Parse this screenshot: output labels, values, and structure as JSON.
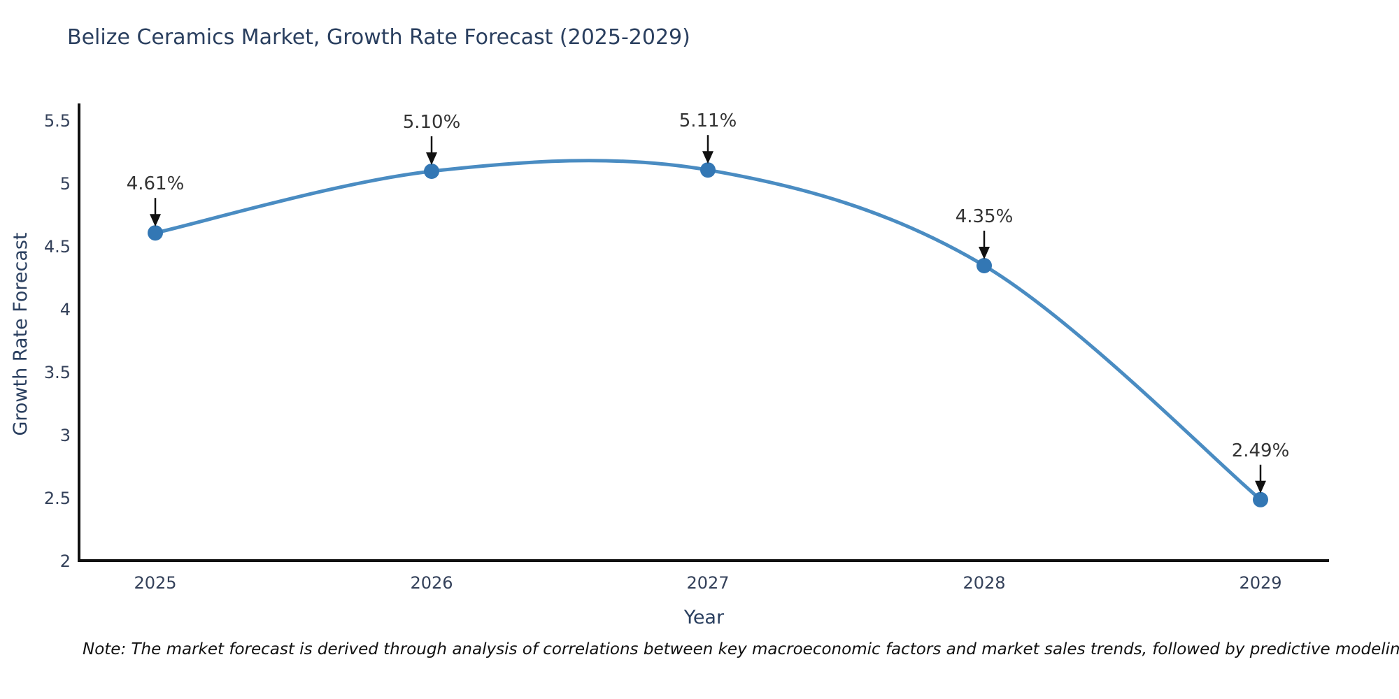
{
  "title": "Belize Ceramics Market, Growth Rate Forecast (2025-2029)",
  "note": "Note: The market forecast is derived through analysis of correlations between key macroeconomic factors and market sales trends, followed by predictive modeling to project future sales",
  "chart_data": {
    "type": "line",
    "title": "Belize Ceramics Market, Growth Rate Forecast (2025-2029)",
    "x": [
      "2025",
      "2026",
      "2027",
      "2028",
      "2029"
    ],
    "values": [
      4.61,
      5.1,
      5.11,
      4.35,
      2.49
    ],
    "point_labels": [
      "4.61%",
      "5.10%",
      "5.11%",
      "4.35%",
      "2.49%"
    ],
    "xlabel": "Year",
    "ylabel": "Growth Rate Forecast",
    "ylim": [
      2,
      5.5
    ],
    "yticks": [
      5.5,
      5,
      4.5,
      4,
      3.5,
      3,
      2.5,
      2
    ],
    "grid": false,
    "legend": "none",
    "line_shape": "spline",
    "marker": "circle",
    "annotation_arrows": true,
    "colors": {
      "line": "#4a8cc2",
      "marker": "#3377b4",
      "axis": "#111111",
      "title_text": "#2a3f5f",
      "tick_text": "#34415a",
      "annotation_text": "#333333",
      "arrow": "#111111",
      "background": "#ffffff"
    }
  }
}
